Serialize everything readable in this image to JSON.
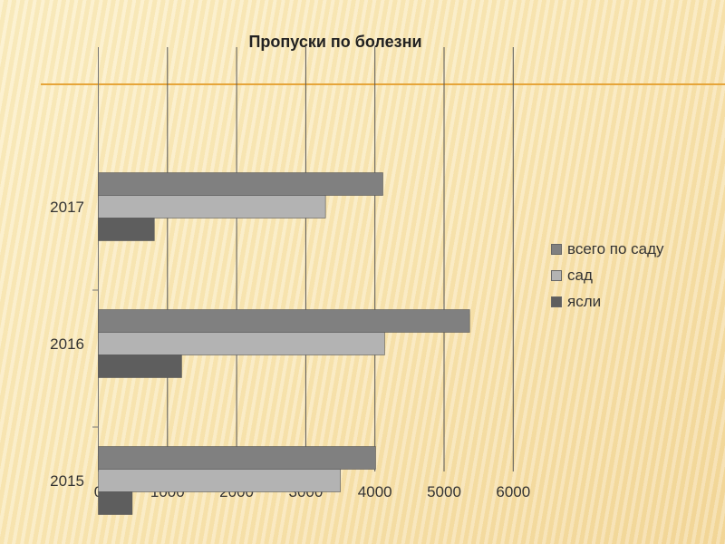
{
  "chart_data": {
    "type": "bar",
    "orientation": "horizontal",
    "title": "Пропуски по болезни",
    "categories": [
      "2015",
      "2016",
      "2017"
    ],
    "series": [
      {
        "name": "всего по саду",
        "color": "#808080",
        "values": [
          4010,
          5370,
          4115
        ]
      },
      {
        "name": "сад",
        "color": "#b3b3b3",
        "values": [
          3500,
          4140,
          3285
        ]
      },
      {
        "name": "ясли",
        "color": "#5e5e5e",
        "values": [
          490,
          1205,
          810
        ]
      }
    ],
    "xlim": [
      0,
      6000
    ],
    "xticks": [
      "0",
      "1000",
      "2000",
      "3000",
      "4000",
      "5000",
      "6000"
    ],
    "grid": true,
    "legend_position": "right"
  }
}
